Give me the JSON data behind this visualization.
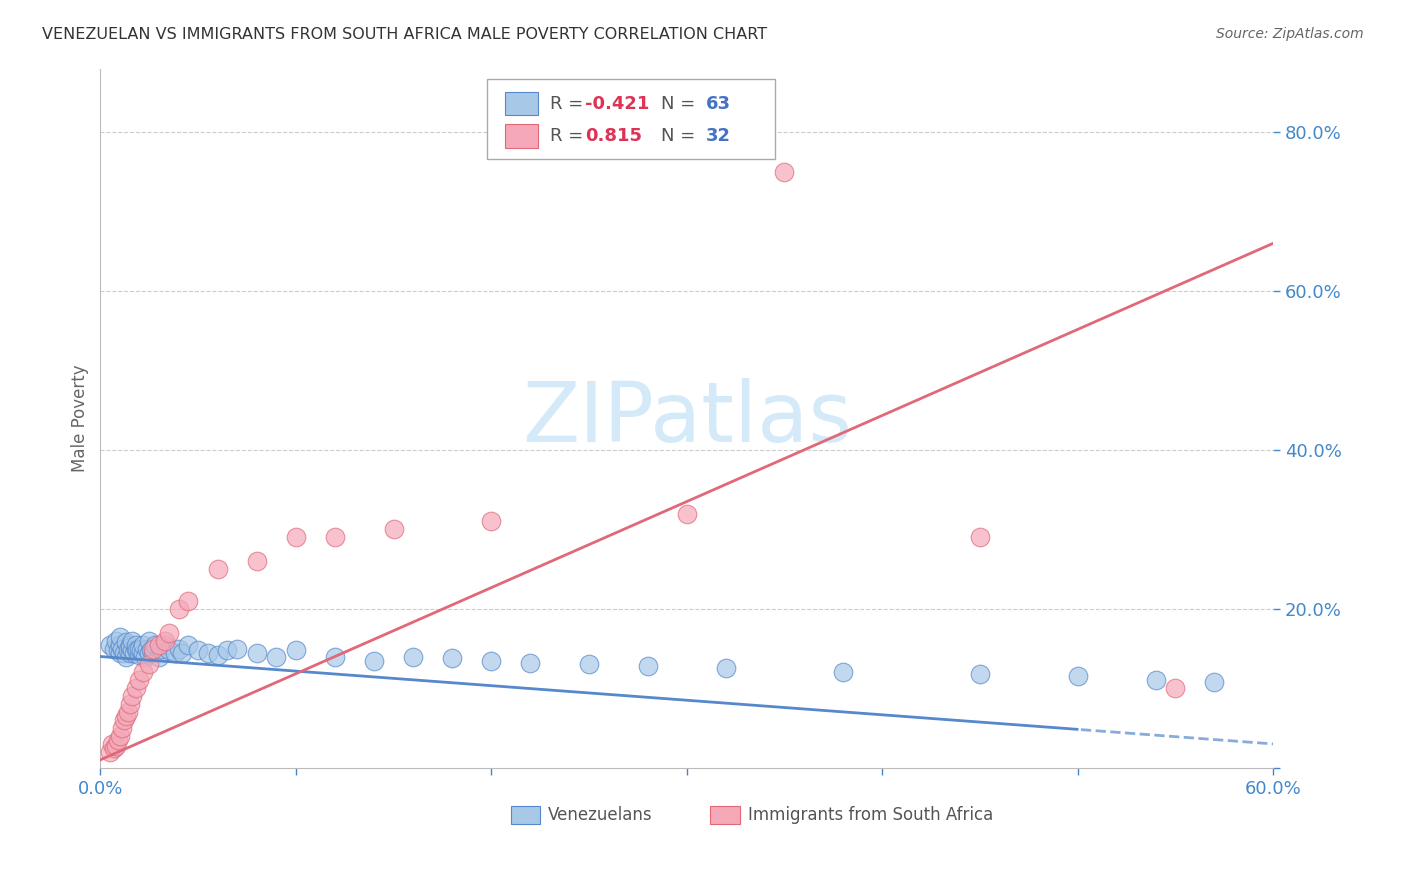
{
  "title": "VENEZUELAN VS IMMIGRANTS FROM SOUTH AFRICA MALE POVERTY CORRELATION CHART",
  "source": "Source: ZipAtlas.com",
  "ylabel": "Male Poverty",
  "xlim": [
    0.0,
    0.6
  ],
  "ylim": [
    0.0,
    0.88
  ],
  "legend_r_blue": "-0.421",
  "legend_n_blue": "63",
  "legend_r_pink": "0.815",
  "legend_n_pink": "32",
  "blue_color": "#a8c8e8",
  "pink_color": "#f4a8b8",
  "line_blue_color": "#5588cc",
  "line_pink_color": "#e06878",
  "grid_color": "#cccccc",
  "axis_color": "#4488cc",
  "watermark_color": "#d0e8f8",
  "venezuelans_x": [
    0.005,
    0.007,
    0.008,
    0.009,
    0.01,
    0.01,
    0.01,
    0.011,
    0.012,
    0.013,
    0.013,
    0.014,
    0.015,
    0.015,
    0.015,
    0.016,
    0.016,
    0.017,
    0.018,
    0.018,
    0.019,
    0.02,
    0.02,
    0.021,
    0.022,
    0.022,
    0.023,
    0.024,
    0.025,
    0.025,
    0.026,
    0.027,
    0.028,
    0.03,
    0.031,
    0.033,
    0.035,
    0.038,
    0.04,
    0.042,
    0.045,
    0.05,
    0.055,
    0.06,
    0.065,
    0.07,
    0.08,
    0.09,
    0.1,
    0.12,
    0.14,
    0.16,
    0.18,
    0.2,
    0.22,
    0.25,
    0.28,
    0.32,
    0.38,
    0.45,
    0.5,
    0.54,
    0.57
  ],
  "venezuelans_y": [
    0.155,
    0.15,
    0.16,
    0.148,
    0.145,
    0.155,
    0.165,
    0.15,
    0.145,
    0.14,
    0.158,
    0.148,
    0.155,
    0.145,
    0.152,
    0.148,
    0.16,
    0.145,
    0.15,
    0.155,
    0.148,
    0.142,
    0.15,
    0.148,
    0.145,
    0.155,
    0.14,
    0.15,
    0.145,
    0.16,
    0.148,
    0.145,
    0.155,
    0.14,
    0.15,
    0.155,
    0.148,
    0.145,
    0.15,
    0.145,
    0.155,
    0.148,
    0.145,
    0.142,
    0.148,
    0.15,
    0.145,
    0.14,
    0.148,
    0.14,
    0.135,
    0.14,
    0.138,
    0.135,
    0.132,
    0.13,
    0.128,
    0.125,
    0.12,
    0.118,
    0.115,
    0.11,
    0.108
  ],
  "sa_x": [
    0.005,
    0.006,
    0.007,
    0.008,
    0.009,
    0.01,
    0.011,
    0.012,
    0.013,
    0.014,
    0.015,
    0.016,
    0.018,
    0.02,
    0.022,
    0.025,
    0.027,
    0.03,
    0.033,
    0.035,
    0.04,
    0.045,
    0.06,
    0.08,
    0.1,
    0.12,
    0.15,
    0.2,
    0.3,
    0.35,
    0.45,
    0.55
  ],
  "sa_y": [
    0.02,
    0.03,
    0.025,
    0.028,
    0.035,
    0.04,
    0.05,
    0.06,
    0.065,
    0.07,
    0.08,
    0.09,
    0.1,
    0.11,
    0.12,
    0.13,
    0.15,
    0.155,
    0.16,
    0.17,
    0.2,
    0.21,
    0.25,
    0.26,
    0.29,
    0.29,
    0.3,
    0.31,
    0.32,
    0.75,
    0.29,
    0.1
  ]
}
